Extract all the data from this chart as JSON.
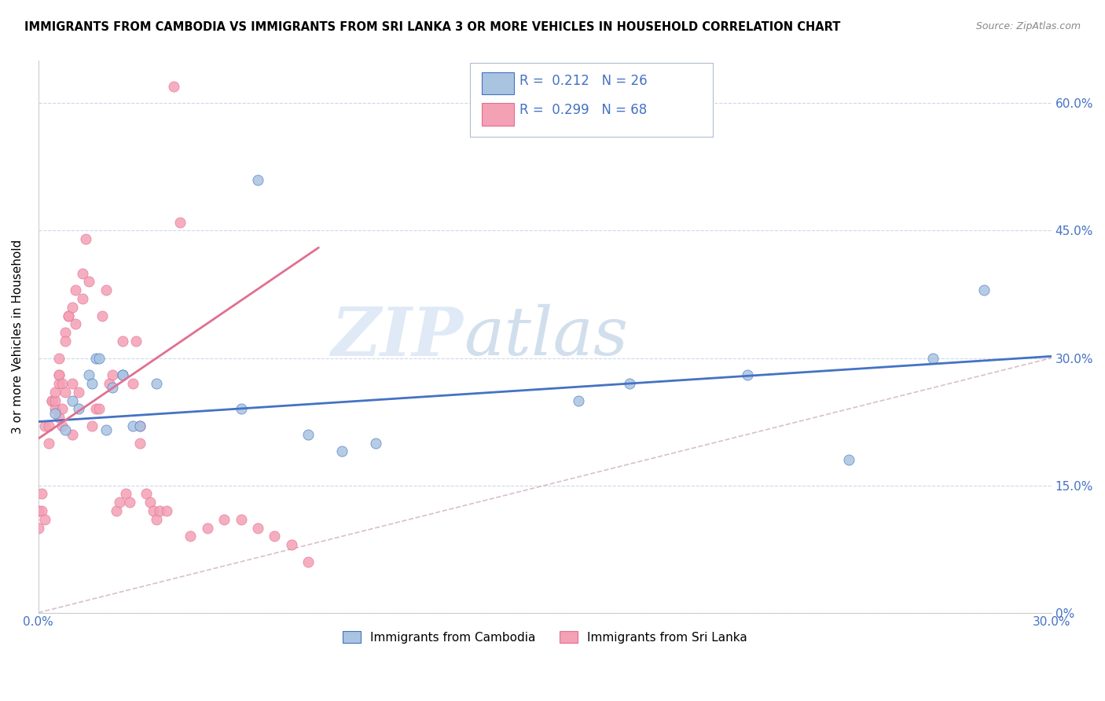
{
  "title": "IMMIGRANTS FROM CAMBODIA VS IMMIGRANTS FROM SRI LANKA 3 OR MORE VEHICLES IN HOUSEHOLD CORRELATION CHART",
  "source": "Source: ZipAtlas.com",
  "ylabel_label": "3 or more Vehicles in Household",
  "ylabel_ticks_pct": [
    "0%",
    "15.0%",
    "30.0%",
    "45.0%",
    "60.0%"
  ],
  "ylabel_ticks_val": [
    0.0,
    0.15,
    0.3,
    0.45,
    0.6
  ],
  "xlim": [
    0.0,
    0.3
  ],
  "ylim": [
    0.0,
    0.65
  ],
  "legend_R_blue": "0.212",
  "legend_N_blue": "26",
  "legend_R_pink": "0.299",
  "legend_N_pink": "68",
  "color_blue": "#a8c4e0",
  "color_pink": "#f4a0b5",
  "color_blue_line": "#4472C4",
  "color_pink_line": "#e07090",
  "color_blue_text": "#4472C4",
  "color_diagonal": "#d0b0b8",
  "watermark_zip": "ZIP",
  "watermark_atlas": "atlas",
  "legend1_label": "Immigrants from Cambodia",
  "legend2_label": "Immigrants from Sri Lanka",
  "blue_trend_x": [
    0.0,
    0.3
  ],
  "blue_trend_y": [
    0.225,
    0.302
  ],
  "pink_trend_x": [
    0.0,
    0.083
  ],
  "pink_trend_y": [
    0.205,
    0.43
  ],
  "blue_x": [
    0.005,
    0.008,
    0.01,
    0.012,
    0.015,
    0.016,
    0.017,
    0.018,
    0.02,
    0.022,
    0.025,
    0.025,
    0.028,
    0.03,
    0.035,
    0.06,
    0.065,
    0.08,
    0.09,
    0.1,
    0.16,
    0.175,
    0.21,
    0.24,
    0.265,
    0.28
  ],
  "blue_y": [
    0.235,
    0.215,
    0.25,
    0.24,
    0.28,
    0.27,
    0.3,
    0.3,
    0.215,
    0.265,
    0.28,
    0.28,
    0.22,
    0.22,
    0.27,
    0.24,
    0.51,
    0.21,
    0.19,
    0.2,
    0.25,
    0.27,
    0.28,
    0.18,
    0.3,
    0.38
  ],
  "pink_x": [
    0.0,
    0.0,
    0.001,
    0.001,
    0.002,
    0.002,
    0.003,
    0.003,
    0.004,
    0.004,
    0.005,
    0.005,
    0.005,
    0.006,
    0.006,
    0.006,
    0.006,
    0.006,
    0.007,
    0.007,
    0.007,
    0.008,
    0.008,
    0.008,
    0.009,
    0.009,
    0.01,
    0.01,
    0.011,
    0.011,
    0.012,
    0.013,
    0.013,
    0.014,
    0.015,
    0.016,
    0.017,
    0.018,
    0.019,
    0.02,
    0.021,
    0.022,
    0.023,
    0.024,
    0.025,
    0.026,
    0.027,
    0.028,
    0.029,
    0.03,
    0.032,
    0.033,
    0.034,
    0.035,
    0.036,
    0.038,
    0.04,
    0.042,
    0.045,
    0.05,
    0.055,
    0.06,
    0.065,
    0.07,
    0.075,
    0.08,
    0.01,
    0.03
  ],
  "pink_y": [
    0.1,
    0.12,
    0.12,
    0.14,
    0.11,
    0.22,
    0.2,
    0.22,
    0.25,
    0.25,
    0.24,
    0.25,
    0.26,
    0.23,
    0.27,
    0.28,
    0.28,
    0.3,
    0.22,
    0.24,
    0.27,
    0.26,
    0.33,
    0.32,
    0.35,
    0.35,
    0.27,
    0.36,
    0.34,
    0.38,
    0.26,
    0.37,
    0.4,
    0.44,
    0.39,
    0.22,
    0.24,
    0.24,
    0.35,
    0.38,
    0.27,
    0.28,
    0.12,
    0.13,
    0.32,
    0.14,
    0.13,
    0.27,
    0.32,
    0.22,
    0.14,
    0.13,
    0.12,
    0.11,
    0.12,
    0.12,
    0.62,
    0.46,
    0.09,
    0.1,
    0.11,
    0.11,
    0.1,
    0.09,
    0.08,
    0.06,
    0.21,
    0.2
  ]
}
